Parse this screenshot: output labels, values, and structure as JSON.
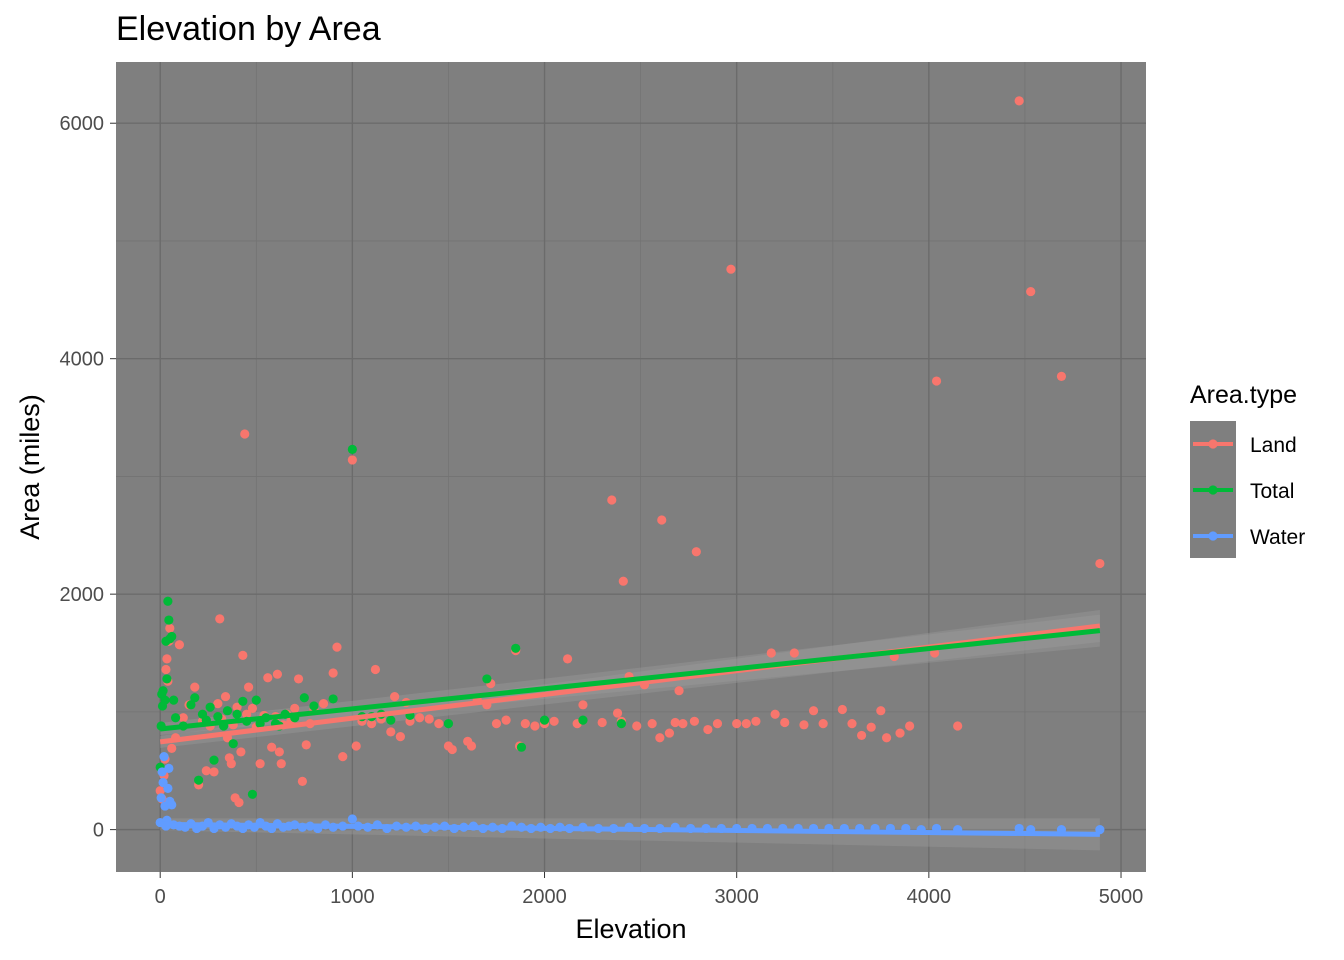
{
  "chart_data": {
    "type": "scatter",
    "title": "Elevation by Area",
    "xlabel": "Elevation",
    "ylabel": "Area (miles)",
    "xlim": [
      -230,
      5130
    ],
    "ylim": [
      -360,
      6520
    ],
    "x_ticks": [
      0,
      1000,
      2000,
      3000,
      4000,
      5000
    ],
    "y_ticks": [
      0,
      2000,
      4000,
      6000
    ],
    "grid": true,
    "legend": {
      "title": "Area.type",
      "position": "right"
    },
    "series": [
      {
        "name": "Land",
        "color": "#F8766D",
        "trend": {
          "x0": 0,
          "y0": 745,
          "x1": 4890,
          "y1": 1730
        },
        "points": [
          [
            0,
            330
          ],
          [
            10,
            260
          ],
          [
            20,
            460
          ],
          [
            25,
            600
          ],
          [
            30,
            1360
          ],
          [
            35,
            1450
          ],
          [
            40,
            1260
          ],
          [
            45,
            1600
          ],
          [
            50,
            1710
          ],
          [
            60,
            690
          ],
          [
            80,
            780
          ],
          [
            100,
            1570
          ],
          [
            120,
            950
          ],
          [
            150,
            1060
          ],
          [
            180,
            1210
          ],
          [
            200,
            380
          ],
          [
            220,
            920
          ],
          [
            240,
            500
          ],
          [
            260,
            880
          ],
          [
            280,
            490
          ],
          [
            300,
            1070
          ],
          [
            310,
            1790
          ],
          [
            320,
            940
          ],
          [
            340,
            1130
          ],
          [
            350,
            780
          ],
          [
            360,
            610
          ],
          [
            370,
            560
          ],
          [
            380,
            890
          ],
          [
            390,
            270
          ],
          [
            400,
            1040
          ],
          [
            410,
            230
          ],
          [
            420,
            660
          ],
          [
            430,
            1480
          ],
          [
            440,
            3360
          ],
          [
            450,
            980
          ],
          [
            460,
            1210
          ],
          [
            480,
            1030
          ],
          [
            500,
            870
          ],
          [
            520,
            560
          ],
          [
            540,
            970
          ],
          [
            560,
            1290
          ],
          [
            580,
            700
          ],
          [
            600,
            960
          ],
          [
            610,
            1320
          ],
          [
            620,
            660
          ],
          [
            630,
            560
          ],
          [
            640,
            890
          ],
          [
            660,
            980
          ],
          [
            680,
            920
          ],
          [
            700,
            1030
          ],
          [
            720,
            1280
          ],
          [
            740,
            410
          ],
          [
            760,
            720
          ],
          [
            780,
            900
          ],
          [
            800,
            1020
          ],
          [
            850,
            1070
          ],
          [
            900,
            1330
          ],
          [
            920,
            1550
          ],
          [
            950,
            620
          ],
          [
            1000,
            3140
          ],
          [
            1020,
            710
          ],
          [
            1050,
            920
          ],
          [
            1100,
            900
          ],
          [
            1120,
            1360
          ],
          [
            1150,
            940
          ],
          [
            1200,
            830
          ],
          [
            1220,
            1130
          ],
          [
            1250,
            790
          ],
          [
            1280,
            1080
          ],
          [
            1300,
            920
          ],
          [
            1350,
            950
          ],
          [
            1400,
            940
          ],
          [
            1450,
            900
          ],
          [
            1500,
            710
          ],
          [
            1520,
            680
          ],
          [
            1600,
            750
          ],
          [
            1620,
            710
          ],
          [
            1650,
            1100
          ],
          [
            1700,
            1060
          ],
          [
            1720,
            1240
          ],
          [
            1750,
            900
          ],
          [
            1800,
            930
          ],
          [
            1850,
            1520
          ],
          [
            1870,
            710
          ],
          [
            1900,
            900
          ],
          [
            1950,
            880
          ],
          [
            2000,
            900
          ],
          [
            2050,
            920
          ],
          [
            2120,
            1450
          ],
          [
            2170,
            900
          ],
          [
            2200,
            1060
          ],
          [
            2300,
            910
          ],
          [
            2350,
            2800
          ],
          [
            2380,
            990
          ],
          [
            2400,
            920
          ],
          [
            2410,
            2110
          ],
          [
            2440,
            1300
          ],
          [
            2480,
            880
          ],
          [
            2520,
            1230
          ],
          [
            2560,
            900
          ],
          [
            2600,
            780
          ],
          [
            2610,
            2630
          ],
          [
            2650,
            820
          ],
          [
            2680,
            910
          ],
          [
            2700,
            1180
          ],
          [
            2720,
            900
          ],
          [
            2780,
            920
          ],
          [
            2790,
            2360
          ],
          [
            2850,
            850
          ],
          [
            2900,
            900
          ],
          [
            2970,
            4760
          ],
          [
            3000,
            900
          ],
          [
            3050,
            900
          ],
          [
            3100,
            920
          ],
          [
            3180,
            1500
          ],
          [
            3200,
            980
          ],
          [
            3250,
            910
          ],
          [
            3300,
            1500
          ],
          [
            3350,
            890
          ],
          [
            3400,
            1010
          ],
          [
            3450,
            900
          ],
          [
            3550,
            1020
          ],
          [
            3600,
            900
          ],
          [
            3650,
            800
          ],
          [
            3700,
            870
          ],
          [
            3750,
            1010
          ],
          [
            3780,
            780
          ],
          [
            3820,
            1470
          ],
          [
            3850,
            820
          ],
          [
            3900,
            880
          ],
          [
            4030,
            1500
          ],
          [
            4040,
            3810
          ],
          [
            4150,
            880
          ],
          [
            4470,
            6190
          ],
          [
            4530,
            4570
          ],
          [
            4690,
            3850
          ],
          [
            4890,
            2260
          ]
        ]
      },
      {
        "name": "Total",
        "color": "#00BA38",
        "trend": {
          "x0": 0,
          "y0": 855,
          "x1": 4890,
          "y1": 1690
        },
        "points": [
          [
            0,
            530
          ],
          [
            5,
            880
          ],
          [
            8,
            1150
          ],
          [
            12,
            1050
          ],
          [
            15,
            1180
          ],
          [
            25,
            1100
          ],
          [
            30,
            1600
          ],
          [
            35,
            1280
          ],
          [
            40,
            1940
          ],
          [
            45,
            1780
          ],
          [
            50,
            1620
          ],
          [
            60,
            1640
          ],
          [
            70,
            1100
          ],
          [
            80,
            950
          ],
          [
            120,
            880
          ],
          [
            160,
            1060
          ],
          [
            180,
            1120
          ],
          [
            200,
            420
          ],
          [
            220,
            980
          ],
          [
            240,
            930
          ],
          [
            260,
            1040
          ],
          [
            280,
            590
          ],
          [
            300,
            960
          ],
          [
            330,
            880
          ],
          [
            350,
            1010
          ],
          [
            380,
            730
          ],
          [
            400,
            980
          ],
          [
            430,
            1090
          ],
          [
            450,
            920
          ],
          [
            480,
            300
          ],
          [
            500,
            1100
          ],
          [
            520,
            900
          ],
          [
            550,
            950
          ],
          [
            600,
            900
          ],
          [
            620,
            880
          ],
          [
            650,
            980
          ],
          [
            700,
            950
          ],
          [
            750,
            1120
          ],
          [
            800,
            1050
          ],
          [
            900,
            1110
          ],
          [
            1000,
            3230
          ],
          [
            1050,
            960
          ],
          [
            1100,
            960
          ],
          [
            1150,
            980
          ],
          [
            1200,
            930
          ],
          [
            1300,
            970
          ],
          [
            1500,
            900
          ],
          [
            1700,
            1280
          ],
          [
            1850,
            1540
          ],
          [
            1880,
            700
          ],
          [
            2000,
            930
          ],
          [
            2200,
            930
          ],
          [
            2400,
            900
          ]
        ]
      },
      {
        "name": "Water",
        "color": "#619CFF",
        "trend": {
          "x0": 0,
          "y0": 45,
          "x1": 4890,
          "y1": -40
        },
        "points": [
          [
            0,
            60
          ],
          [
            5,
            270
          ],
          [
            10,
            490
          ],
          [
            15,
            400
          ],
          [
            20,
            620
          ],
          [
            25,
            200
          ],
          [
            30,
            30
          ],
          [
            35,
            80
          ],
          [
            40,
            350
          ],
          [
            45,
            520
          ],
          [
            50,
            240
          ],
          [
            60,
            210
          ],
          [
            70,
            40
          ],
          [
            100,
            30
          ],
          [
            130,
            20
          ],
          [
            160,
            50
          ],
          [
            190,
            10
          ],
          [
            220,
            30
          ],
          [
            250,
            60
          ],
          [
            280,
            10
          ],
          [
            310,
            40
          ],
          [
            340,
            20
          ],
          [
            370,
            50
          ],
          [
            400,
            30
          ],
          [
            430,
            10
          ],
          [
            460,
            40
          ],
          [
            490,
            20
          ],
          [
            520,
            60
          ],
          [
            550,
            30
          ],
          [
            580,
            10
          ],
          [
            610,
            50
          ],
          [
            640,
            20
          ],
          [
            670,
            30
          ],
          [
            700,
            40
          ],
          [
            740,
            20
          ],
          [
            780,
            30
          ],
          [
            820,
            10
          ],
          [
            860,
            40
          ],
          [
            900,
            20
          ],
          [
            950,
            30
          ],
          [
            1000,
            90
          ],
          [
            1030,
            30
          ],
          [
            1080,
            20
          ],
          [
            1130,
            40
          ],
          [
            1180,
            10
          ],
          [
            1230,
            30
          ],
          [
            1280,
            20
          ],
          [
            1330,
            30
          ],
          [
            1380,
            10
          ],
          [
            1430,
            20
          ],
          [
            1480,
            30
          ],
          [
            1530,
            10
          ],
          [
            1580,
            20
          ],
          [
            1630,
            30
          ],
          [
            1680,
            10
          ],
          [
            1730,
            20
          ],
          [
            1780,
            10
          ],
          [
            1830,
            30
          ],
          [
            1880,
            20
          ],
          [
            1930,
            10
          ],
          [
            1980,
            20
          ],
          [
            2030,
            10
          ],
          [
            2080,
            20
          ],
          [
            2130,
            10
          ],
          [
            2200,
            20
          ],
          [
            2280,
            10
          ],
          [
            2360,
            10
          ],
          [
            2440,
            20
          ],
          [
            2520,
            10
          ],
          [
            2600,
            10
          ],
          [
            2680,
            20
          ],
          [
            2760,
            10
          ],
          [
            2840,
            10
          ],
          [
            2920,
            10
          ],
          [
            3000,
            10
          ],
          [
            3080,
            10
          ],
          [
            3160,
            10
          ],
          [
            3240,
            10
          ],
          [
            3320,
            10
          ],
          [
            3400,
            10
          ],
          [
            3480,
            10
          ],
          [
            3560,
            10
          ],
          [
            3640,
            10
          ],
          [
            3720,
            10
          ],
          [
            3800,
            10
          ],
          [
            3880,
            10
          ],
          [
            3960,
            0
          ],
          [
            4040,
            10
          ],
          [
            4150,
            0
          ],
          [
            4470,
            10
          ],
          [
            4530,
            0
          ],
          [
            4690,
            0
          ],
          [
            4890,
            0
          ]
        ]
      }
    ]
  }
}
